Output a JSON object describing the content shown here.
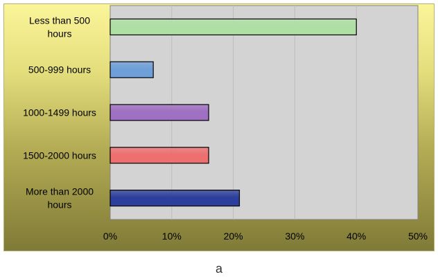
{
  "chart_data": {
    "type": "bar",
    "orientation": "horizontal",
    "categories": [
      [
        "Less than 500",
        "hours"
      ],
      [
        "500-999 hours"
      ],
      [
        "1000-1499 hours"
      ],
      [
        "1500-2000 hours"
      ],
      [
        "More than 2000",
        "hours"
      ]
    ],
    "values": [
      40,
      7,
      16,
      16,
      21
    ],
    "value_unit": "%",
    "xlim": [
      0,
      50
    ],
    "xticks": [
      "0%",
      "10%",
      "20%",
      "30%",
      "40%",
      "50%"
    ],
    "grid": true,
    "legend": "none",
    "colors": {
      "bars": [
        "#aee0a4",
        "#6f9fd8",
        "#9f6fc2",
        "#ee6f6f",
        "#2c3f9c"
      ],
      "plot_background": "#d3d3d3"
    }
  },
  "caption": "a"
}
